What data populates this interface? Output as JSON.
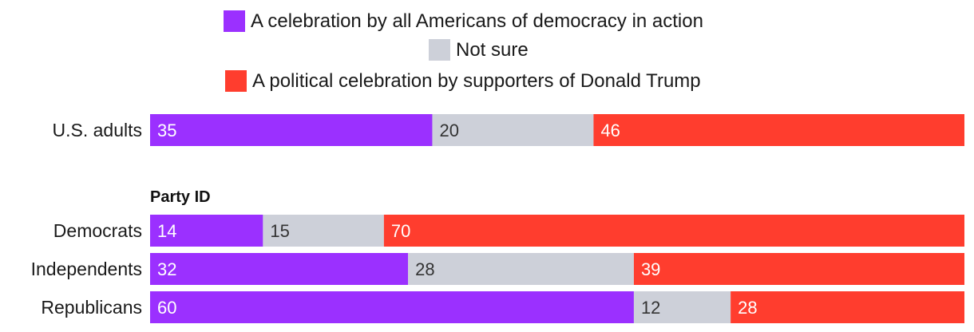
{
  "chart_data": {
    "type": "bar",
    "orientation": "horizontal",
    "stacked": true,
    "series": [
      {
        "name": "A celebration by all Americans of democracy in action",
        "color": "#9B30FF",
        "label_color": "#ffffff",
        "values": [
          35,
          14,
          32,
          60
        ]
      },
      {
        "name": "Not sure",
        "color": "#CDD0D9",
        "label_color": "#333333",
        "values": [
          20,
          15,
          28,
          12
        ]
      },
      {
        "name": "A political celebration by supporters of Donald Trump",
        "color": "#FF3D2E",
        "label_color": "#ffffff",
        "values": [
          46,
          70,
          39,
          28
        ]
      }
    ],
    "categories": [
      "U.S. adults",
      "Democrats",
      "Independents",
      "Republicans"
    ],
    "group_heading": "Party ID",
    "group_heading_before_category": "Democrats",
    "legend_placement": "top-center",
    "xlim": [
      0,
      101
    ]
  }
}
